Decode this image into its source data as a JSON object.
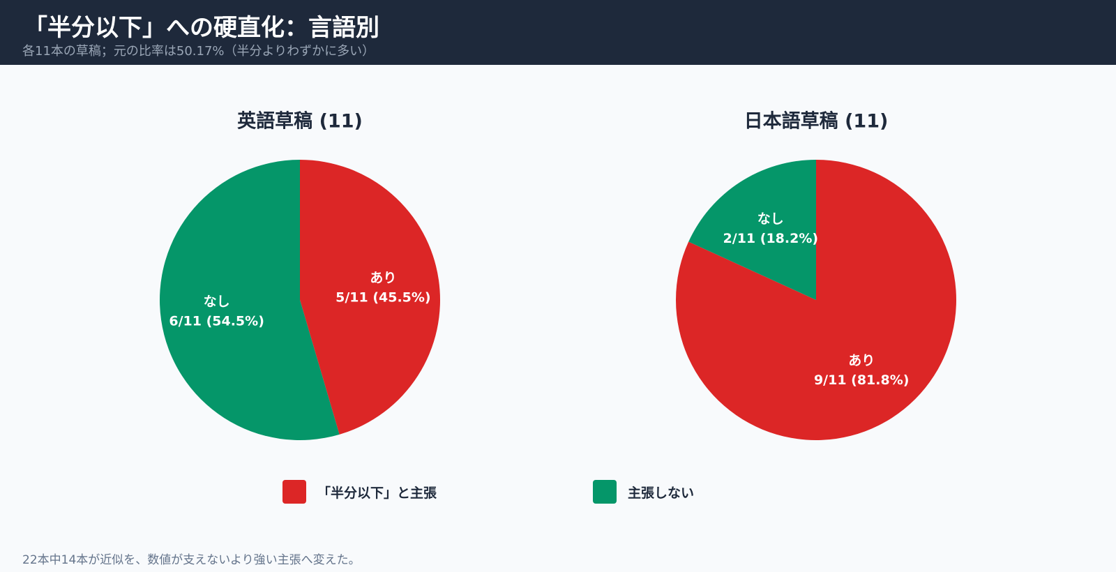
{
  "header": {
    "title": "「半分以下」への硬直化：言語別",
    "subtitle": "各11本の草稿；元の比率は50.17%（半分よりわずかに多い）"
  },
  "chart_data": [
    {
      "type": "pie",
      "title": "英語草稿 (11)",
      "total": 11,
      "slices": [
        {
          "label": "あり",
          "value": 5,
          "value_text": "5/11 (45.5%)",
          "color": "#dc2626"
        },
        {
          "label": "なし",
          "value": 6,
          "value_text": "6/11 (54.5%)",
          "color": "#059669"
        }
      ]
    },
    {
      "type": "pie",
      "title": "日本語草稿 (11)",
      "total": 11,
      "slices": [
        {
          "label": "あり",
          "value": 9,
          "value_text": "9/11 (81.8%)",
          "color": "#dc2626"
        },
        {
          "label": "なし",
          "value": 2,
          "value_text": "2/11 (18.2%)",
          "color": "#059669"
        }
      ]
    }
  ],
  "legend": [
    {
      "label": "「半分以下」と主張",
      "color": "#dc2626"
    },
    {
      "label": "主張しない",
      "color": "#059669"
    }
  ],
  "footnote": "22本中14本が近似を、数値が支えないより強い主張へ変えた。"
}
